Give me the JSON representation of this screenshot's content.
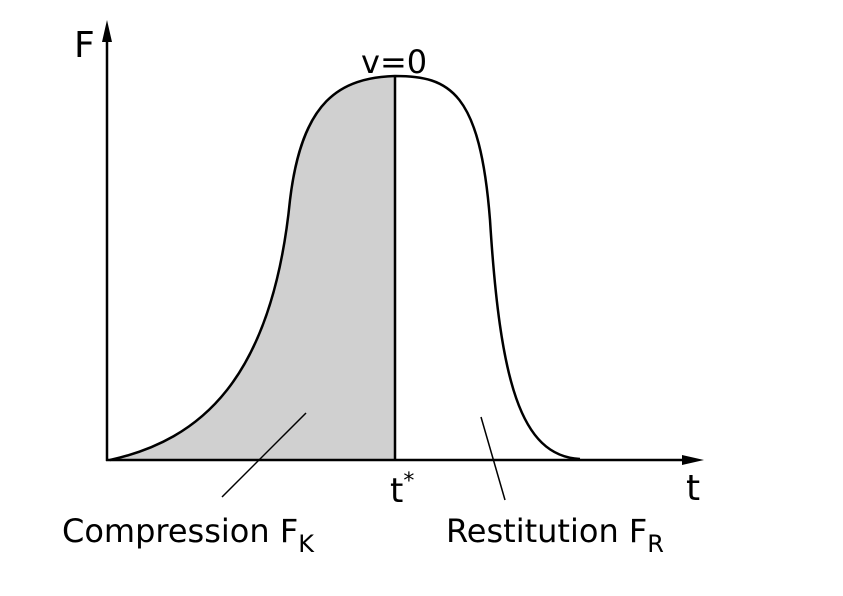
{
  "axes": {
    "y_label": "F",
    "x_label": "t"
  },
  "peak_label": "v=0",
  "split_label": {
    "text": "t",
    "sup": "*"
  },
  "regions": {
    "compression": {
      "text": "Compression F",
      "sub": "K"
    },
    "restitution": {
      "text": "Restitution F",
      "sub": "R"
    }
  }
}
